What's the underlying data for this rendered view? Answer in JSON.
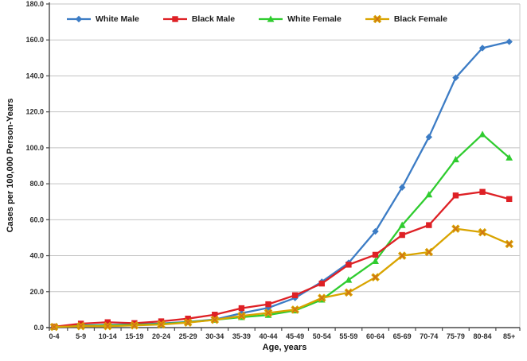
{
  "figure": {
    "background": "#ffffff",
    "axis_color": "#4a4a4a",
    "grid_color": "#c3c3c3",
    "border_color": "#cccccc"
  },
  "chart_data": {
    "type": "line",
    "title": "",
    "xlabel": "Age, years",
    "ylabel": "Cases per 100,000 Person-Years",
    "ylim": [
      0,
      180
    ],
    "y_tick_step": 20,
    "y_tick_labels": [
      "0.0",
      "20.0",
      "40.0",
      "60.0",
      "80.0",
      "100.0",
      "120.0",
      "140.0",
      "160.0",
      "180.0"
    ],
    "grid": true,
    "legend_position": "top-inside",
    "categories": [
      "0-4",
      "5-9",
      "10-14",
      "15-19",
      "20-24",
      "25-29",
      "30-34",
      "35-39",
      "40-44",
      "45-49",
      "50-54",
      "55-59",
      "60-64",
      "65-69",
      "70-74",
      "75-79",
      "80-84",
      "85+"
    ],
    "series": [
      {
        "name": "White Male",
        "color": "#3c7cc5",
        "marker": "diamond",
        "values": [
          0.4,
          1.2,
          1.5,
          1.8,
          2.3,
          3.2,
          4.5,
          8.0,
          11.0,
          16.5,
          25.5,
          36.0,
          53.5,
          78.0,
          106.0,
          139.0,
          155.5,
          159.0
        ]
      },
      {
        "name": "Black Male",
        "color": "#de2025",
        "marker": "square",
        "values": [
          0.5,
          2.2,
          3.0,
          2.5,
          3.5,
          5.0,
          7.2,
          10.8,
          13.0,
          18.0,
          24.5,
          35.0,
          40.5,
          51.5,
          57.0,
          73.5,
          75.5,
          71.5
        ]
      },
      {
        "name": "White Female",
        "color": "#2fcc2f",
        "marker": "triangle",
        "values": [
          0.4,
          1.0,
          1.2,
          1.5,
          2.0,
          3.0,
          4.3,
          5.8,
          7.0,
          9.5,
          15.5,
          26.5,
          37.0,
          57.0,
          74.0,
          93.5,
          107.5,
          94.5
        ]
      },
      {
        "name": "Black Female",
        "color": "#d9a400",
        "marker": "x",
        "marker_inner_color": "#cf6a1d",
        "values": [
          0.4,
          0.8,
          0.8,
          1.2,
          1.7,
          2.8,
          4.3,
          6.5,
          8.2,
          10.0,
          16.5,
          19.5,
          28.0,
          40.0,
          42.0,
          55.0,
          53.0,
          46.5
        ]
      }
    ]
  }
}
